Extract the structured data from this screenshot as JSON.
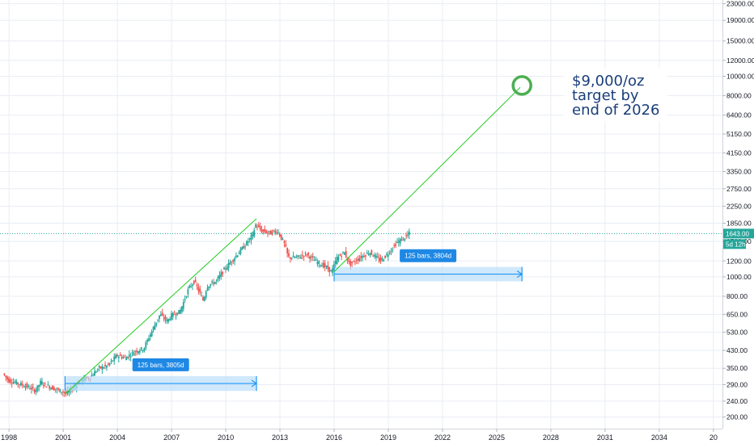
{
  "chart_data": {
    "type": "candlestick",
    "title": "",
    "xlabel": "",
    "ylabel": "",
    "y_scale": "log",
    "ylim": [
      175,
      24000
    ],
    "xlim": [
      1997.5,
      2037.5
    ],
    "grid": true,
    "x_ticks": [
      "1998",
      "2001",
      "2004",
      "2007",
      "2010",
      "2013",
      "2016",
      "2019",
      "2022",
      "2025",
      "2028",
      "2031",
      "2034",
      "20"
    ],
    "y_ticks": [
      "23000.00",
      "19000.00",
      "15000.00",
      "12000.00",
      "10000.00",
      "8000.00",
      "6400.00",
      "5150.00",
      "4150.00",
      "3350.00",
      "2750.00",
      "2250.00",
      "1850.00",
      "1500.00",
      "1200.00",
      "1000.00",
      "800.00",
      "650.00",
      "530.00",
      "430.00",
      "350.00",
      "290.00",
      "240.00",
      "200.00"
    ],
    "price_path": [
      [
        1997.7,
        330
      ],
      [
        1998.0,
        305
      ],
      [
        1998.5,
        295
      ],
      [
        1999.0,
        285
      ],
      [
        1999.5,
        270
      ],
      [
        1999.8,
        300
      ],
      [
        2000.0,
        290
      ],
      [
        2000.5,
        278
      ],
      [
        2001.0,
        268
      ],
      [
        2001.2,
        262
      ],
      [
        2001.5,
        275
      ],
      [
        2002.0,
        305
      ],
      [
        2002.5,
        315
      ],
      [
        2003.0,
        350
      ],
      [
        2003.5,
        360
      ],
      [
        2004.0,
        405
      ],
      [
        2004.5,
        395
      ],
      [
        2005.0,
        425
      ],
      [
        2005.5,
        440
      ],
      [
        2006.0,
        550
      ],
      [
        2006.4,
        650
      ],
      [
        2006.8,
        600
      ],
      [
        2007.0,
        640
      ],
      [
        2007.5,
        670
      ],
      [
        2008.0,
        880
      ],
      [
        2008.3,
        950
      ],
      [
        2008.8,
        760
      ],
      [
        2009.0,
        900
      ],
      [
        2009.5,
        950
      ],
      [
        2010.0,
        1100
      ],
      [
        2010.5,
        1240
      ],
      [
        2011.0,
        1400
      ],
      [
        2011.5,
        1600
      ],
      [
        2011.7,
        1820
      ],
      [
        2012.0,
        1700
      ],
      [
        2012.5,
        1650
      ],
      [
        2012.9,
        1700
      ],
      [
        2013.3,
        1450
      ],
      [
        2013.5,
        1250
      ],
      [
        2014.0,
        1250
      ],
      [
        2014.5,
        1300
      ],
      [
        2015.0,
        1200
      ],
      [
        2015.5,
        1130
      ],
      [
        2015.9,
        1060
      ],
      [
        2016.2,
        1240
      ],
      [
        2016.6,
        1330
      ],
      [
        2016.9,
        1150
      ],
      [
        2017.5,
        1250
      ],
      [
        2018.0,
        1330
      ],
      [
        2018.6,
        1200
      ],
      [
        2019.0,
        1300
      ],
      [
        2019.5,
        1480
      ],
      [
        2020.0,
        1580
      ],
      [
        2020.2,
        1643
      ]
    ],
    "current_price": {
      "label": "1643.00",
      "value": 1643
    },
    "countdown_label": "5d 12h",
    "trend_lines": [
      {
        "from": [
          2001.1,
          260
        ],
        "to": [
          2011.7,
          1950
        ],
        "color": "#22cc22"
      },
      {
        "from": [
          2016.0,
          1060
        ],
        "to": [
          2026.3,
          8800
        ],
        "color": "#22cc22"
      }
    ],
    "date_ranges": [
      {
        "from": [
          2001.1,
          270
        ],
        "to": [
          2011.7,
          320
        ],
        "label": "125 bars, 3805d"
      },
      {
        "from": [
          2016.0,
          950
        ],
        "to": [
          2026.4,
          1120
        ],
        "label": "125 bars, 3804d"
      }
    ],
    "target_marker": {
      "x": 2026.4,
      "y": 9000,
      "color": "#4caf50"
    },
    "annotation": {
      "lines": [
        "$9,000/oz",
        "target by",
        "end of 2026"
      ]
    },
    "colors": {
      "up": "#26a69a",
      "down": "#ef5350",
      "grid": "#e9edf3",
      "price_line": "#26a69a",
      "range_fill": "#bbdefb",
      "range_stroke": "#2196f3",
      "range_label_bg": "#1e88e5"
    }
  }
}
